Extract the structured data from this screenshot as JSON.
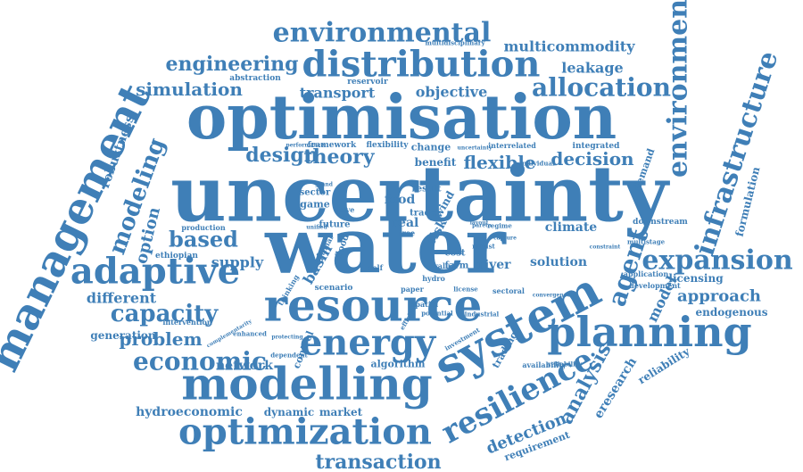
{
  "colors": {
    "word": "#3f7fb7",
    "background": "#ffffff"
  },
  "words": [
    "uncertainty",
    "water",
    "optimisation",
    "management",
    "resource",
    "system",
    "modelling",
    "planning",
    "energy",
    "optimization",
    "resilience",
    "distribution",
    "environmental",
    "adaptive",
    "infrastructure",
    "environment",
    "expansion",
    "economic",
    "capacity",
    "analysis",
    "allocation",
    "engineering",
    "agent",
    "modeling",
    "simulation",
    "based",
    "approach",
    "transaction",
    "detection",
    "flexible",
    "decision",
    "design",
    "theory",
    "problem",
    "network",
    "objective",
    "transport",
    "leakage",
    "multicommodity",
    "eresearch",
    "robustness",
    "option",
    "supply",
    "different",
    "river",
    "risk",
    "climate",
    "reliability",
    "formulation",
    "endogenous",
    "model",
    "licensing",
    "generation",
    "hydroeconomic",
    "dynamic",
    "market",
    "algorithm",
    "control",
    "trading",
    "solution",
    "basin",
    "requirement",
    "food",
    "sector",
    "game",
    "benefit",
    "real",
    "change",
    "integrated",
    "demand",
    "reservoir",
    "abstraction",
    "framework",
    "flexibility",
    "performance",
    "downstream",
    "production",
    "ethiopian",
    "intervention",
    "application",
    "development",
    "multistage",
    "cost",
    "farm",
    "wind",
    "result",
    "trade",
    "hydro",
    "future",
    "scenario",
    "paper",
    "spatial",
    "efficient",
    "sectoral",
    "industrial",
    "availability",
    "potential",
    "investment",
    "robust",
    "grand",
    "solve",
    "tree",
    "self",
    "thinking",
    "optimal",
    "flood",
    "unified",
    "dependent",
    "enhanced",
    "complementarity",
    "protecting",
    "interrelated",
    "individual",
    "reliability",
    "multidisciplinary",
    "value",
    "license",
    "regime",
    "pareto",
    "capture",
    "convergence",
    "constraint",
    "uncertainty",
    "layout"
  ]
}
